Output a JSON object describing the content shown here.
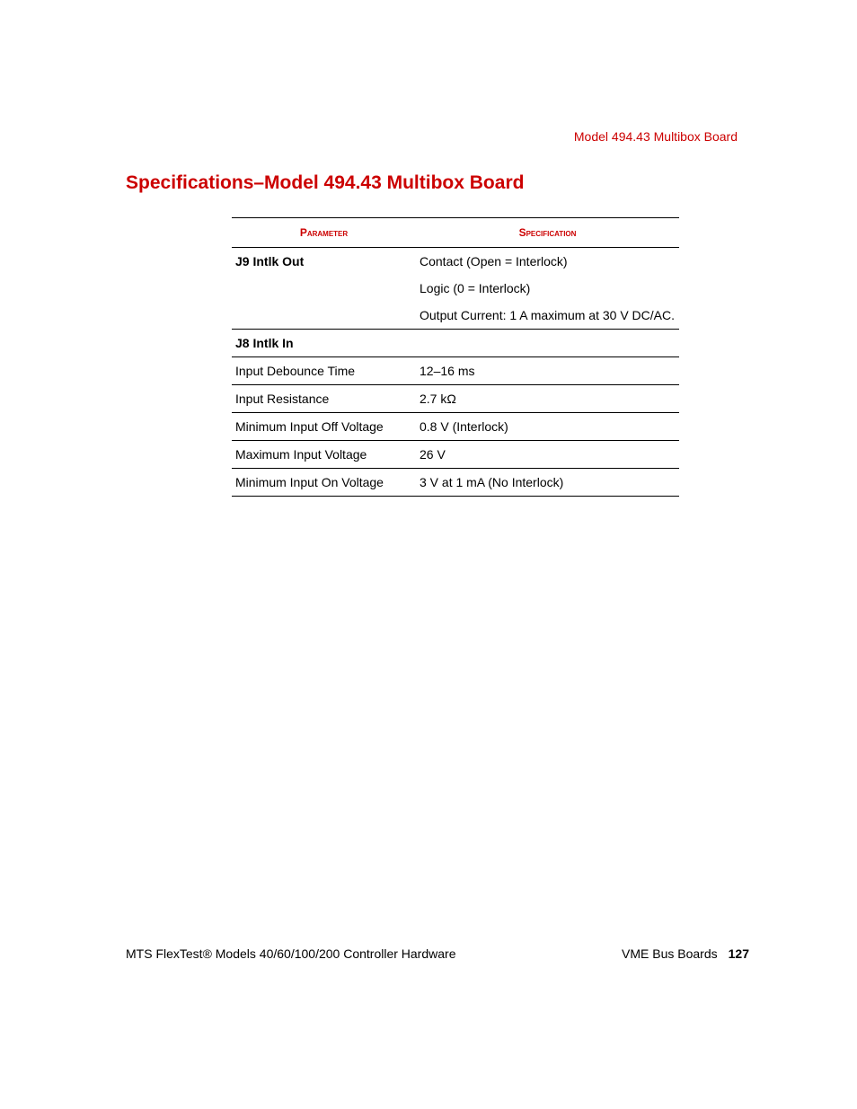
{
  "header": {
    "running_title": "Model 494.43 Multibox Board"
  },
  "heading": "Specifications–Model 494.43 Multibox Board",
  "table": {
    "columns": [
      "Parameter",
      "Specification"
    ],
    "rows": [
      {
        "param": "J9 Intlk Out",
        "spec": "Contact (Open = Interlock)",
        "bold_param": true,
        "sep": false
      },
      {
        "param": "",
        "spec": "Logic (0 = Interlock)",
        "bold_param": false,
        "sep": false
      },
      {
        "param": "",
        "spec": "Output Current: 1 A maximum at 30 V DC/AC.",
        "bold_param": false,
        "sep": true
      },
      {
        "param": "J8 Intlk In",
        "spec": "",
        "bold_param": true,
        "sep": true
      },
      {
        "param": "Input Debounce Time",
        "spec": "12–16 ms",
        "bold_param": false,
        "sep": true
      },
      {
        "param": "Input Resistance",
        "spec": "2.7 kΩ",
        "bold_param": false,
        "sep": true
      },
      {
        "param": "Minimum Input Off Voltage",
        "spec": "0.8 V (Interlock)",
        "bold_param": false,
        "sep": true
      },
      {
        "param": "Maximum Input Voltage",
        "spec": "26 V",
        "bold_param": false,
        "sep": true
      },
      {
        "param": "Minimum Input On Voltage",
        "spec": "3 V at 1 mA (No Interlock)",
        "bold_param": false,
        "sep": false,
        "last": true
      }
    ]
  },
  "footer": {
    "left": "MTS FlexTest® Models 40/60/100/200 Controller Hardware",
    "right_section": "VME Bus Boards",
    "page_number": "127"
  },
  "colors": {
    "accent": "#cc0000",
    "text": "#000000",
    "bg": "#ffffff"
  }
}
